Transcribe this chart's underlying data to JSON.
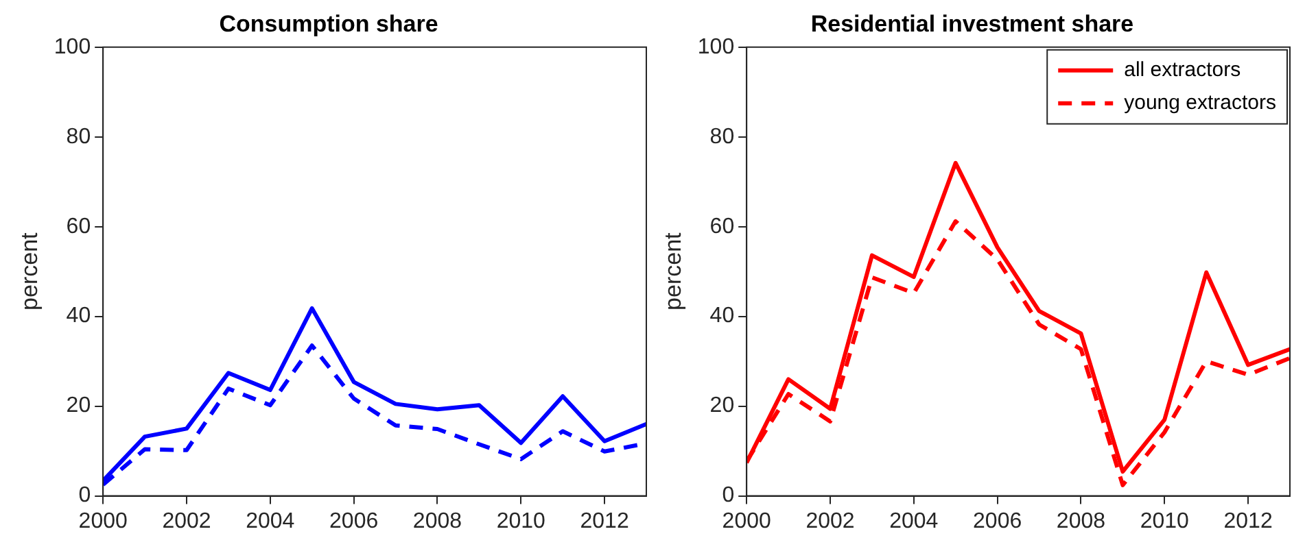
{
  "chart_data": [
    {
      "type": "line",
      "title": "Consumption share",
      "ylabel": "percent",
      "x": [
        2000,
        2001,
        2002,
        2003,
        2004,
        2005,
        2006,
        2007,
        2008,
        2009,
        2010,
        2011,
        2012,
        2013
      ],
      "xlim": [
        2000,
        2013
      ],
      "xticks": [
        2000,
        2002,
        2004,
        2006,
        2008,
        2010,
        2012
      ],
      "ylim": [
        0,
        100
      ],
      "yticks": [
        0,
        20,
        40,
        60,
        80,
        100
      ],
      "grid": false,
      "legend": false,
      "marker": "none",
      "series": [
        {
          "color": "#0000ff",
          "line_style": "solid",
          "values": [
            3.4,
            13.2,
            15,
            27.4,
            23.6,
            41.8,
            25.4,
            20.5,
            19.3,
            20.2,
            11.8,
            22.2,
            12.2,
            16
          ]
        },
        {
          "color": "#0000ff",
          "line_style": "dashed",
          "values": [
            2.5,
            10.4,
            10.2,
            23.9,
            20.2,
            33.5,
            21.7,
            15.7,
            14.9,
            11.5,
            8.2,
            14.4,
            9.9,
            11.7
          ]
        }
      ]
    },
    {
      "type": "line",
      "title": "Residential investment share",
      "ylabel": "percent",
      "x": [
        2000,
        2001,
        2002,
        2003,
        2004,
        2005,
        2006,
        2007,
        2008,
        2009,
        2010,
        2011,
        2012,
        2013
      ],
      "xlim": [
        2000,
        2013
      ],
      "xticks": [
        2000,
        2002,
        2004,
        2006,
        2008,
        2010,
        2012
      ],
      "ylim": [
        0,
        100
      ],
      "yticks": [
        0,
        20,
        40,
        60,
        80,
        100
      ],
      "grid": false,
      "legend": "top right",
      "marker": "none",
      "series": [
        {
          "name": "all extractors",
          "color": "#ff0000",
          "line_style": "solid",
          "values": [
            7.4,
            26,
            19.4,
            53.6,
            48.8,
            74.2,
            55.4,
            41.2,
            36.2,
            5.4,
            17,
            49.8,
            29.2,
            32.7
          ]
        },
        {
          "name": "young extractors",
          "color": "#ff0000",
          "line_style": "dashed",
          "values": [
            7.7,
            22.7,
            16.6,
            48.7,
            45.2,
            61.2,
            52.7,
            38.2,
            32.7,
            2.4,
            14.2,
            30,
            27,
            30.7
          ]
        }
      ]
    }
  ]
}
